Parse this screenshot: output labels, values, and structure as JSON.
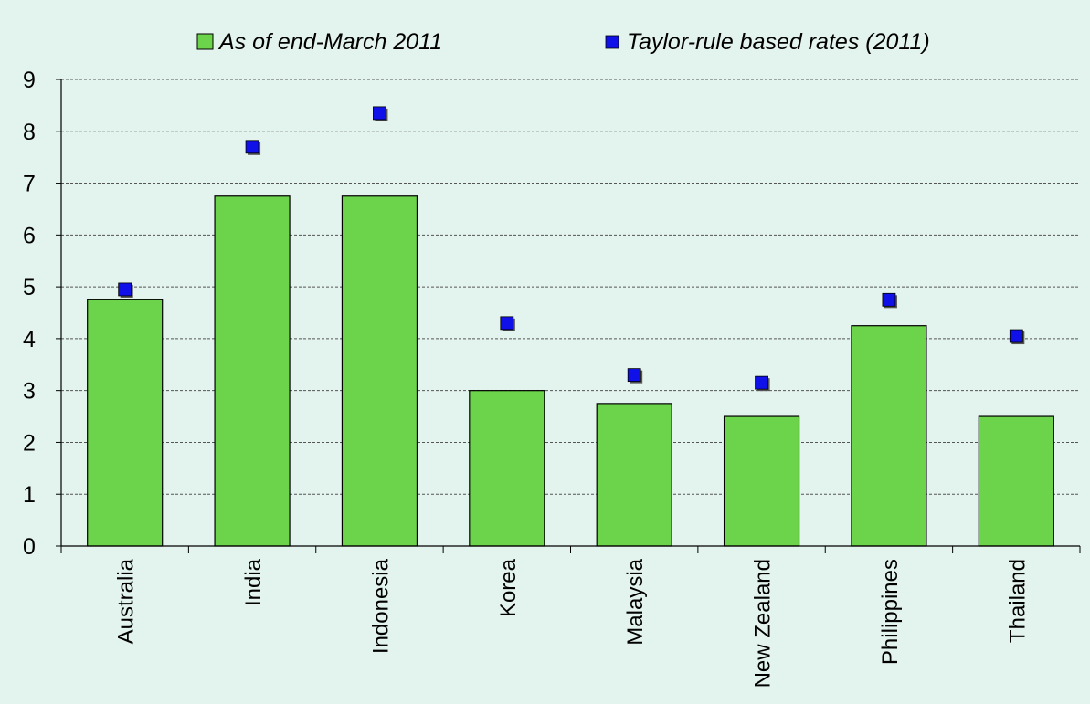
{
  "chart_data": {
    "type": "bar",
    "categories": [
      "Australia",
      "India",
      "Indonesia",
      "Korea",
      "Malaysia",
      "New Zealand",
      "Philippines",
      "Thailand"
    ],
    "series": [
      {
        "name": "As of end-March 2011",
        "type": "bar",
        "color": "#6cd44a",
        "values": [
          4.75,
          6.75,
          6.75,
          3.0,
          2.75,
          2.5,
          4.25,
          2.5
        ]
      },
      {
        "name": "Taylor-rule based rates (2011)",
        "type": "marker",
        "marker": "square",
        "color": "#1010e8",
        "values": [
          4.95,
          7.7,
          8.35,
          4.3,
          3.3,
          3.15,
          4.75,
          4.05
        ]
      }
    ],
    "yticks": [
      0,
      1,
      2,
      3,
      4,
      5,
      6,
      7,
      8,
      9
    ],
    "ylim": [
      0,
      9
    ],
    "grid": "horizontal dashed",
    "legend_position": "top",
    "title": "",
    "xlabel": "",
    "ylabel": ""
  }
}
